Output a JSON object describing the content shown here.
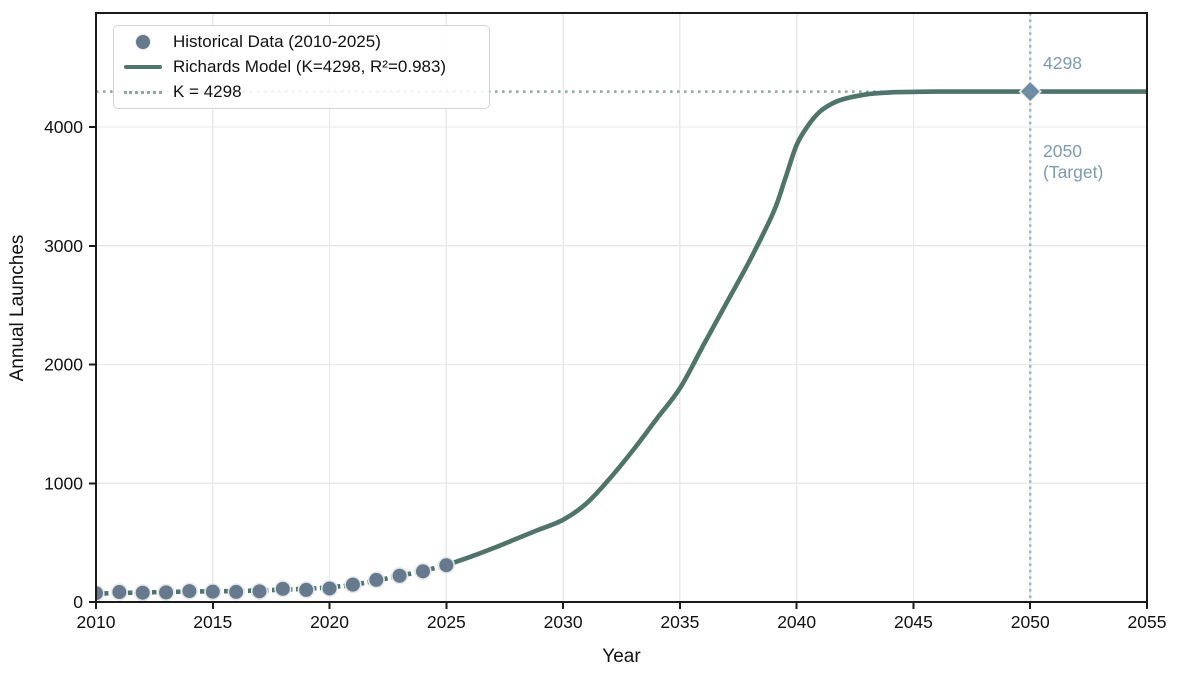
{
  "figure": {
    "xlabel": "Year",
    "ylabel": "Annual Launches"
  },
  "legend": {
    "items": [
      {
        "label": "Historical Data (2010-2025)",
        "marker": "circle"
      },
      {
        "label": "Richards Model (K=4298, R²=0.983)",
        "marker": "line"
      },
      {
        "label": "K = 4298",
        "marker": "dotted-line"
      }
    ]
  },
  "annotations": {
    "capacity_value": "4298",
    "target_year": "2050",
    "target_label": "(Target)"
  },
  "colors": {
    "model_line": "#4f7469",
    "historical_marker": "#66798d",
    "marker_edge": "#e3e8ec",
    "k_line": "#8aa89c",
    "target_line": "#9db5c3",
    "target_diamond": "#6e8ca2",
    "annotation_text": "#7e9aac",
    "grid": "#e9e9e9",
    "spine": "#1a1a1a",
    "text": "#111111"
  },
  "chart_data": {
    "type": "line",
    "title": "",
    "xlabel": "Year",
    "ylabel": "Annual Launches",
    "xlim": [
      2010,
      2055
    ],
    "ylim": [
      0,
      4960
    ],
    "x_ticks": [
      2010,
      2015,
      2020,
      2025,
      2030,
      2035,
      2040,
      2045,
      2050,
      2055
    ],
    "y_ticks": [
      0,
      1000,
      2000,
      3000,
      4000
    ],
    "grid": true,
    "legend_position": "upper-left",
    "capacity_K": 4298,
    "r_squared": 0.983,
    "target_year": 2050,
    "series": [
      {
        "name": "Historical Data (2010-2025)",
        "type": "scatter",
        "x": [
          2010,
          2011,
          2012,
          2013,
          2014,
          2015,
          2016,
          2017,
          2018,
          2019,
          2020,
          2021,
          2022,
          2023,
          2024,
          2025
        ],
        "y": [
          74,
          84,
          78,
          81,
          92,
          87,
          85,
          90,
          111,
          102,
          114,
          146,
          186,
          221,
          258,
          310
        ]
      },
      {
        "name": "Richards Model (K=4298, R²=0.983)",
        "type": "line",
        "solid_from": 2025,
        "points": [
          [
            2010,
            70
          ],
          [
            2011,
            76
          ],
          [
            2012,
            80
          ],
          [
            2013,
            84
          ],
          [
            2014,
            88
          ],
          [
            2015,
            90
          ],
          [
            2016,
            92
          ],
          [
            2017,
            97
          ],
          [
            2018,
            104
          ],
          [
            2019,
            112
          ],
          [
            2020,
            124
          ],
          [
            2021,
            145
          ],
          [
            2022,
            180
          ],
          [
            2023,
            220
          ],
          [
            2024,
            262
          ],
          [
            2025,
            310
          ],
          [
            2026,
            378
          ],
          [
            2027,
            452
          ],
          [
            2028,
            532
          ],
          [
            2029,
            612
          ],
          [
            2030,
            692
          ],
          [
            2031,
            830
          ],
          [
            2032,
            1040
          ],
          [
            2033,
            1280
          ],
          [
            2034,
            1540
          ],
          [
            2035,
            1800
          ],
          [
            2036,
            2160
          ],
          [
            2037,
            2520
          ],
          [
            2038,
            2880
          ],
          [
            2039,
            3280
          ],
          [
            2039.5,
            3560
          ],
          [
            2040,
            3850
          ],
          [
            2040.5,
            4015
          ],
          [
            2041,
            4130
          ],
          [
            2041.5,
            4195
          ],
          [
            2042,
            4235
          ],
          [
            2043,
            4275
          ],
          [
            2044,
            4291
          ],
          [
            2045,
            4296
          ],
          [
            2046,
            4298
          ],
          [
            2050,
            4298
          ],
          [
            2055,
            4298
          ]
        ]
      },
      {
        "name": "K = 4298",
        "type": "hline",
        "y": 4298
      },
      {
        "name": "2050 (Target)",
        "type": "vline",
        "x": 2050
      },
      {
        "name": "Target intersection",
        "type": "marker",
        "marker": "diamond",
        "x": 2050,
        "y": 4298
      }
    ]
  }
}
